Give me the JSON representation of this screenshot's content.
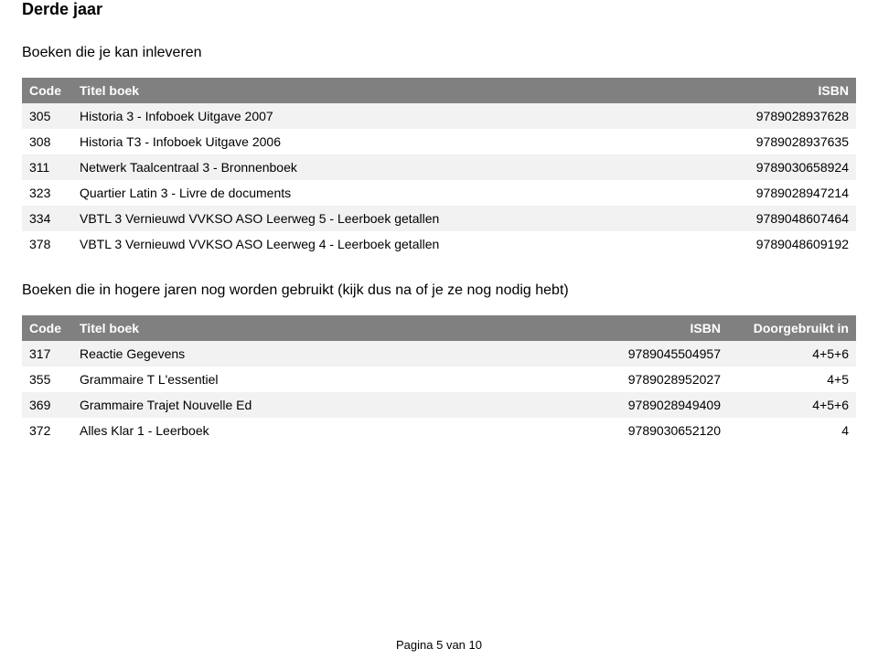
{
  "page": {
    "title": "Derde jaar",
    "footer": "Pagina 5 van 10"
  },
  "section1": {
    "heading": "Boeken die je kan inleveren",
    "columns": {
      "code": "Code",
      "title": "Titel boek",
      "isbn": "ISBN"
    },
    "rows": [
      {
        "code": "305",
        "title": "Historia 3 - Infoboek Uitgave 2007",
        "isbn": "9789028937628"
      },
      {
        "code": "308",
        "title": "Historia T3 - Infoboek Uitgave 2006",
        "isbn": "9789028937635"
      },
      {
        "code": "311",
        "title": "Netwerk Taalcentraal 3 - Bronnenboek",
        "isbn": "9789030658924"
      },
      {
        "code": "323",
        "title": "Quartier Latin 3 - Livre de documents",
        "isbn": "9789028947214"
      },
      {
        "code": "334",
        "title": "VBTL 3 Vernieuwd VVKSO ASO Leerweg 5 - Leerboek getallen",
        "isbn": "9789048607464"
      },
      {
        "code": "378",
        "title": "VBTL 3 Vernieuwd VVKSO ASO Leerweg 4 - Leerboek getallen",
        "isbn": "9789048609192"
      }
    ],
    "header_bg": "#808080",
    "header_fg": "#ffffff",
    "row_even_bg": "#f2f2f2",
    "row_odd_bg": "#ffffff",
    "font_size_header": 14,
    "font_size_body": 14
  },
  "section2": {
    "heading": "Boeken die in hogere jaren nog worden gebruikt (kijk dus na of je ze nog nodig hebt)",
    "columns": {
      "code": "Code",
      "title": "Titel boek",
      "isbn": "ISBN",
      "used_in": "Doorgebruikt in"
    },
    "rows": [
      {
        "code": "317",
        "title": "Reactie Gegevens",
        "isbn": "9789045504957",
        "used_in": "4+5+6"
      },
      {
        "code": "355",
        "title": "Grammaire T L'essentiel",
        "isbn": "9789028952027",
        "used_in": "4+5"
      },
      {
        "code": "369",
        "title": "Grammaire Trajet Nouvelle Ed",
        "isbn": "9789028949409",
        "used_in": "4+5+6"
      },
      {
        "code": "372",
        "title": "Alles Klar 1 - Leerboek",
        "isbn": "9789030652120",
        "used_in": "4"
      }
    ],
    "header_bg": "#808080",
    "header_fg": "#ffffff",
    "row_even_bg": "#f2f2f2",
    "row_odd_bg": "#ffffff",
    "font_size_header": 14,
    "font_size_body": 14
  }
}
